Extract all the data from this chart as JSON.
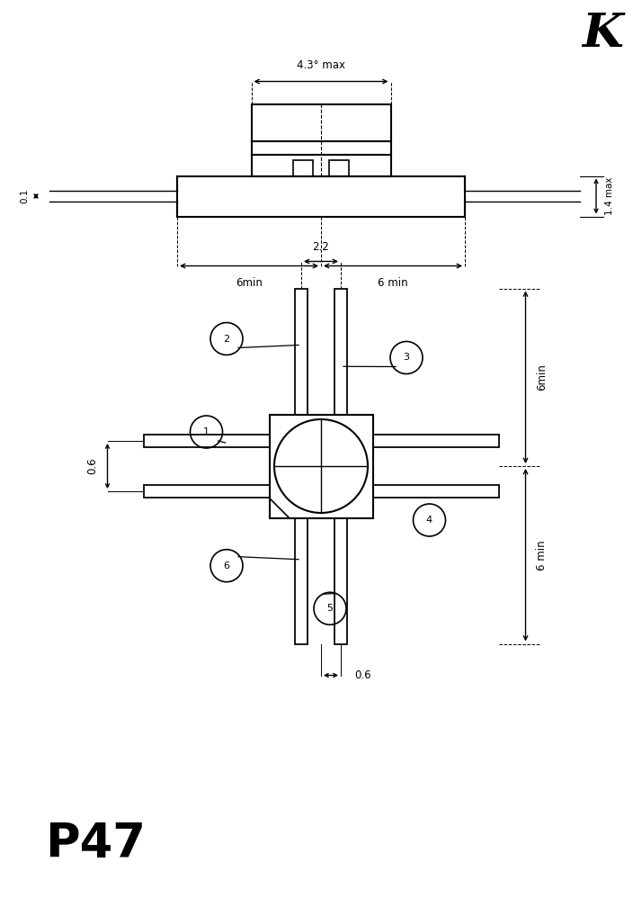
{
  "title_K": "K",
  "title_P47": "P47",
  "bg_color": "#ffffff",
  "line_color": "#000000",
  "top_view": {
    "dim_43_text": "4.3° max",
    "dim_14_text": "1.4 max",
    "dim_01_text": "0.1",
    "dim_6min1_text": "6min",
    "dim_6min2_text": "6 min"
  },
  "bottom_view": {
    "dim_22_text": "2.2",
    "dim_06_left_text": "0.6",
    "dim_06_bot_text": "0.6",
    "dim_6min_top_text": "6min",
    "dim_6min_bot_text": "6 min"
  },
  "pin_labels": [
    "1",
    "2",
    "3",
    "4",
    "5",
    "6"
  ]
}
